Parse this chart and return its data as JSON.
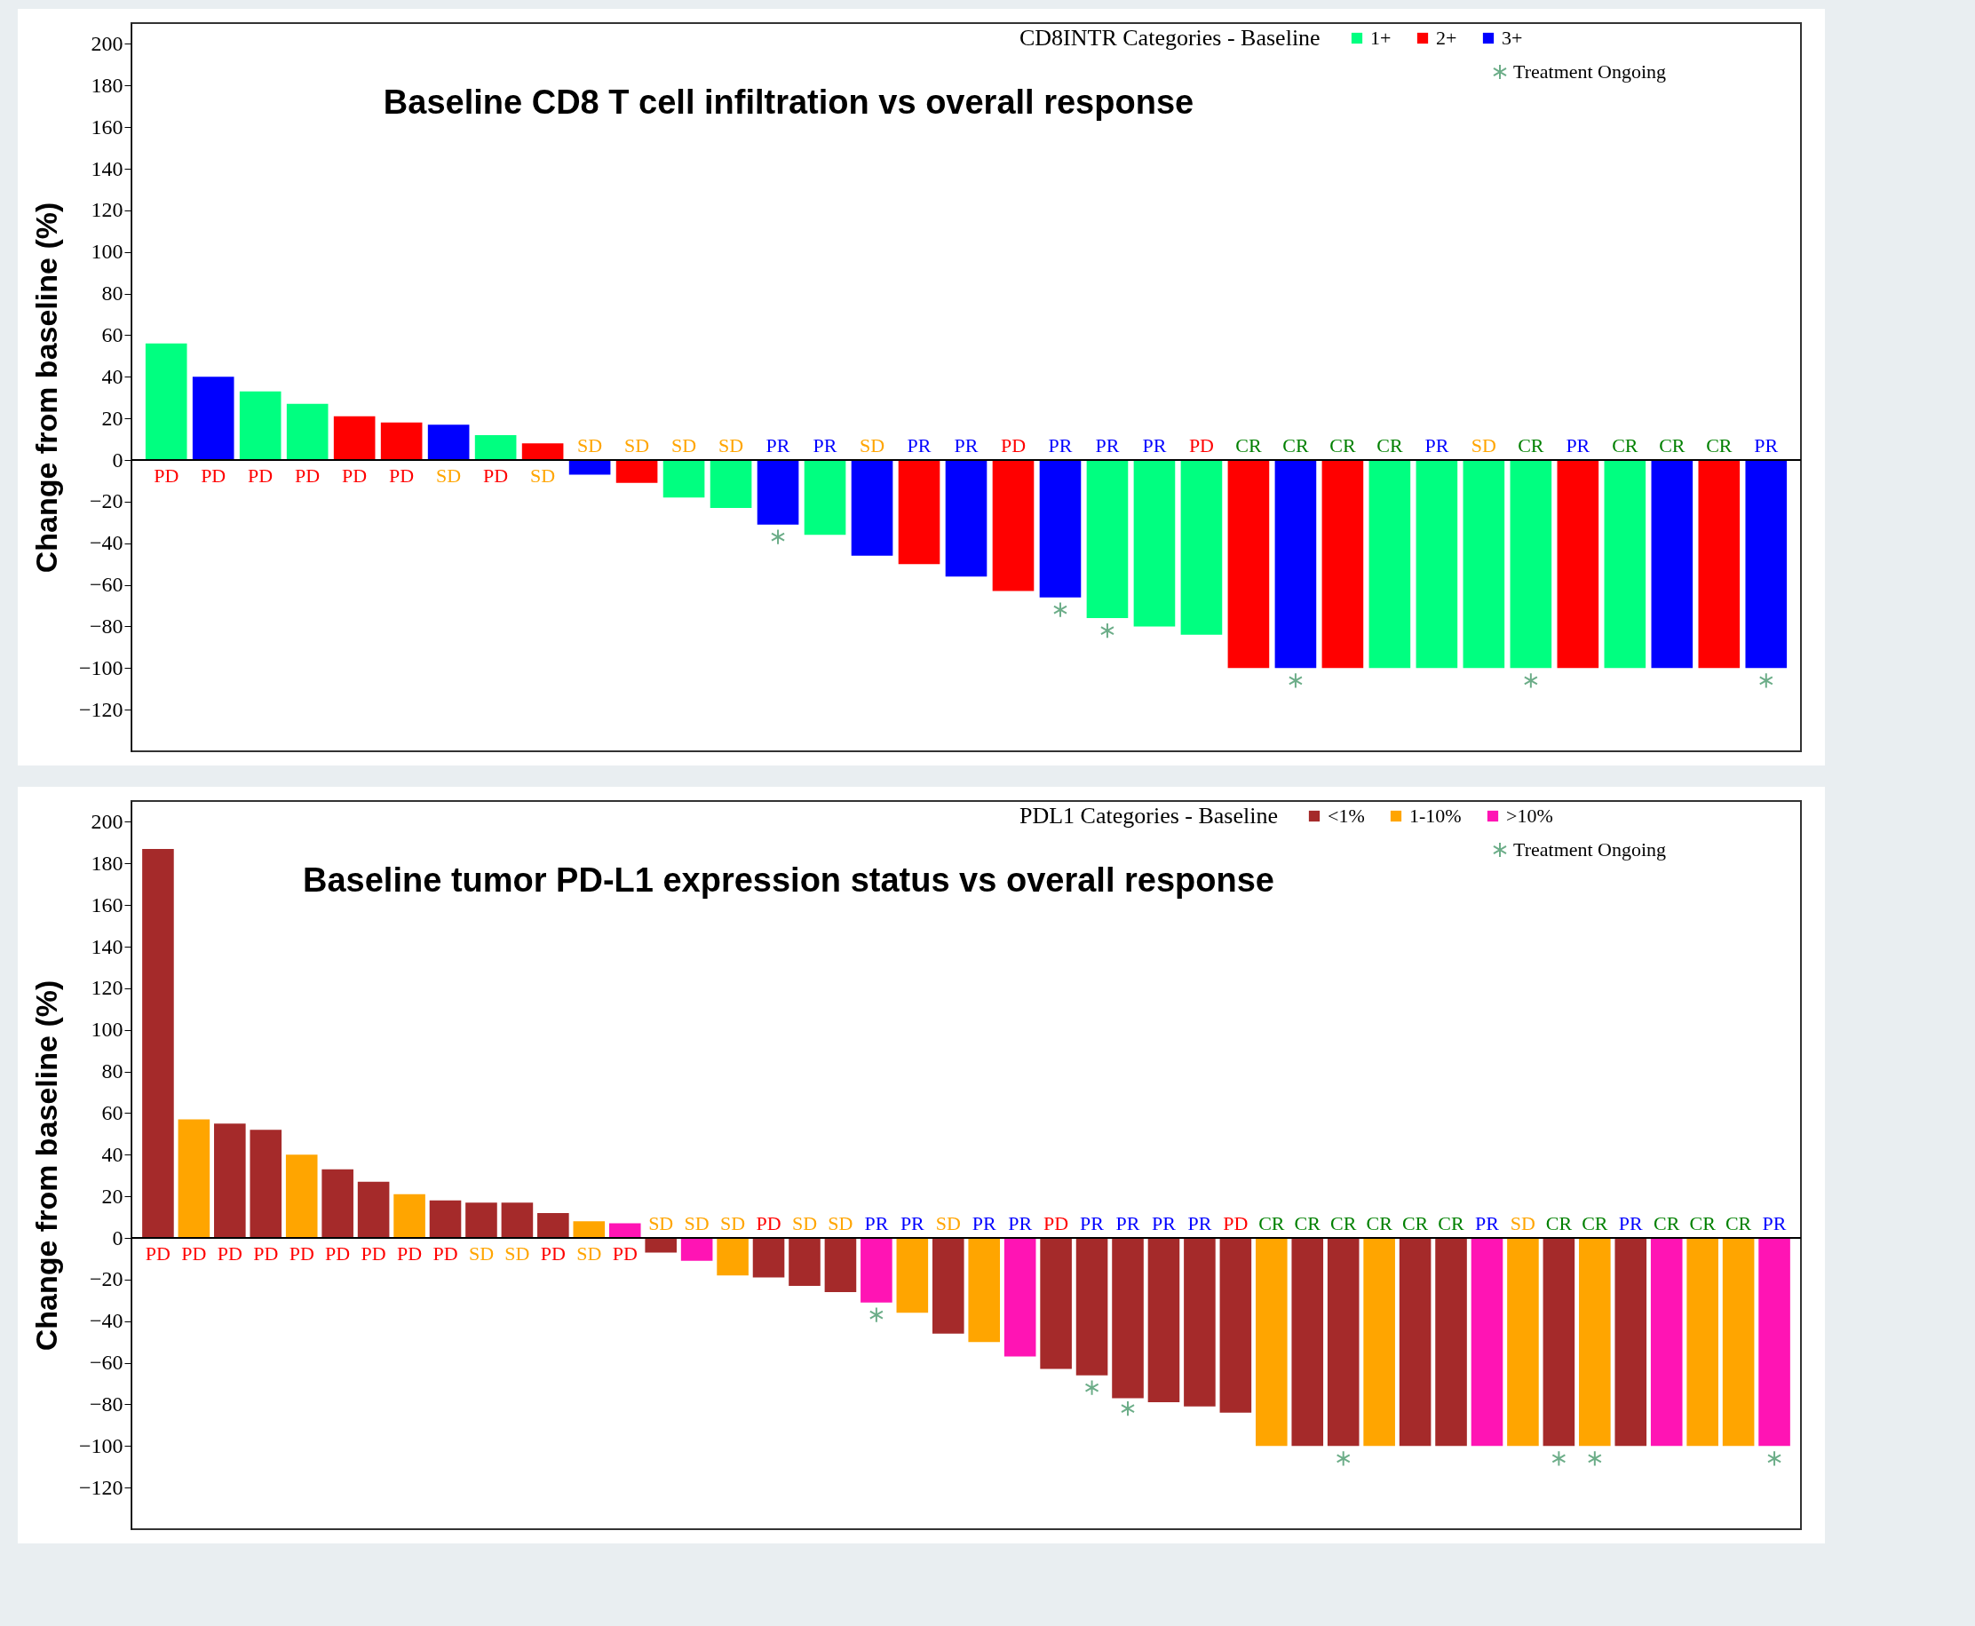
{
  "chart_data": [
    {
      "type": "bar",
      "title": "Baseline CD8 T cell infiltration vs overall response",
      "ylabel": "Change from baseline (%)",
      "legend_title": "CD8INTR Categories - Baseline",
      "legend": "top right",
      "marker": "cross",
      "grid": false,
      "categories": [
        null,
        null,
        null,
        null,
        null,
        null,
        null,
        null,
        null,
        null,
        null,
        null,
        null,
        null,
        null,
        null,
        null,
        null,
        null,
        null,
        null,
        null,
        null,
        null,
        null,
        null,
        null,
        null,
        null,
        null,
        null,
        null,
        null,
        null,
        null
      ],
      "ylim": [
        -140,
        210
      ],
      "yticks": [
        -120,
        -100,
        -80,
        -60,
        -40,
        -20,
        0,
        20,
        40,
        60,
        80,
        100,
        120,
        140,
        160,
        180,
        200
      ],
      "ref_lines": [
        {
          "axis": "y",
          "value": 0,
          "color": "#000000"
        }
      ],
      "series": [
        {
          "name": "1+",
          "color": "#00ff80",
          "values": [
            56,
            null,
            33,
            27,
            null,
            null,
            null,
            12,
            null,
            null,
            null,
            -18,
            -23,
            null,
            -36,
            null,
            null,
            null,
            null,
            null,
            -76,
            -80,
            -84,
            null,
            null,
            null,
            -100,
            -100,
            -100,
            -100,
            null,
            -100,
            null,
            null,
            null
          ],
          "value_labels": [
            "PD",
            null,
            "PD",
            "PD",
            null,
            null,
            null,
            "PD",
            null,
            null,
            null,
            "SD",
            "SD",
            null,
            "PR",
            null,
            null,
            null,
            null,
            null,
            "PR",
            "PR",
            "PD",
            null,
            null,
            null,
            "CR",
            "PR",
            "SD",
            "CR",
            null,
            "CR",
            null,
            null,
            null
          ]
        },
        {
          "name": "2+",
          "color": "#ff0000",
          "values": [
            null,
            null,
            null,
            null,
            21,
            18,
            null,
            null,
            8,
            null,
            -11,
            null,
            null,
            null,
            null,
            null,
            -50,
            null,
            -63,
            null,
            null,
            null,
            null,
            -100,
            null,
            -100,
            null,
            null,
            null,
            null,
            -100,
            null,
            null,
            -100,
            null
          ],
          "value_labels": [
            null,
            null,
            null,
            null,
            "PD",
            "PD",
            null,
            null,
            "SD",
            null,
            "SD",
            null,
            null,
            null,
            null,
            null,
            "PR",
            null,
            "PD",
            null,
            null,
            null,
            null,
            "CR",
            null,
            "CR",
            null,
            null,
            null,
            null,
            "PR",
            null,
            null,
            "CR",
            null
          ]
        },
        {
          "name": "3+",
          "color": "#0000ff",
          "values": [
            null,
            40,
            null,
            null,
            null,
            null,
            17,
            null,
            null,
            -7,
            null,
            null,
            null,
            -31,
            null,
            -46,
            null,
            -56,
            null,
            -66,
            null,
            null,
            null,
            null,
            -100,
            null,
            null,
            null,
            null,
            null,
            null,
            null,
            -100,
            null,
            -100
          ],
          "value_labels": [
            null,
            "PD",
            null,
            null,
            null,
            null,
            "SD",
            null,
            null,
            "SD",
            null,
            null,
            null,
            "PR",
            null,
            "SD",
            null,
            "PR",
            null,
            "PR",
            null,
            null,
            null,
            null,
            "CR",
            null,
            null,
            null,
            null,
            null,
            null,
            null,
            "CR",
            null,
            "PR"
          ]
        },
        {
          "name": "Treatment Ongoing",
          "type": "scatter",
          "color": "#2e8b57",
          "values": [
            null,
            null,
            null,
            null,
            null,
            null,
            null,
            null,
            null,
            null,
            null,
            null,
            null,
            -37,
            null,
            null,
            null,
            null,
            null,
            -72,
            -82,
            null,
            null,
            null,
            -106,
            null,
            null,
            null,
            null,
            -106,
            null,
            null,
            null,
            null,
            -106
          ]
        }
      ]
    },
    {
      "type": "bar",
      "title": "Baseline tumor PD-L1 expression status vs overall response",
      "ylabel": "Change from baseline (%)",
      "legend_title": "PDL1 Categories - Baseline",
      "legend": "top right",
      "marker": "cross",
      "grid": false,
      "categories": [
        null,
        null,
        null,
        null,
        null,
        null,
        null,
        null,
        null,
        null,
        null,
        null,
        null,
        null,
        null,
        null,
        null,
        null,
        null,
        null,
        null,
        null,
        null,
        null,
        null,
        null,
        null,
        null,
        null,
        null,
        null,
        null,
        null,
        null,
        null,
        null,
        null,
        null,
        null,
        null,
        null,
        null,
        null,
        null,
        null,
        null
      ],
      "ylim": [
        -140,
        210
      ],
      "yticks": [
        -120,
        -100,
        -80,
        -60,
        -40,
        -20,
        0,
        20,
        40,
        60,
        80,
        100,
        120,
        140,
        160,
        180,
        200
      ],
      "ref_lines": [
        {
          "axis": "y",
          "value": 0,
          "color": "#000000"
        }
      ],
      "series": [
        {
          "name": "<1%",
          "color": "#a52a2a",
          "values": [
            187,
            null,
            55,
            52,
            null,
            33,
            27,
            null,
            18,
            17,
            17,
            12,
            null,
            null,
            -7,
            null,
            null,
            -19,
            -23,
            -26,
            null,
            null,
            -46,
            null,
            null,
            -63,
            -66,
            -77,
            -79,
            -81,
            -84,
            null,
            -100,
            -100,
            null,
            -100,
            -100,
            null,
            null,
            -100,
            null,
            -100,
            null,
            null,
            null,
            null
          ],
          "value_labels": [
            "PD",
            null,
            "PD",
            "PD",
            null,
            "PD",
            "PD",
            null,
            "PD",
            "SD",
            "SD",
            "PD",
            null,
            null,
            "SD",
            null,
            null,
            "PD",
            "SD",
            "SD",
            null,
            null,
            "SD",
            null,
            null,
            "PD",
            "PR",
            "PR",
            "PR",
            "PR",
            "PD",
            null,
            "CR",
            "CR",
            null,
            "CR",
            "CR",
            null,
            null,
            "CR",
            null,
            "PR",
            null,
            null,
            null,
            null
          ]
        },
        {
          "name": "1-10%",
          "color": "#ffa500",
          "values": [
            null,
            57,
            null,
            null,
            40,
            null,
            null,
            21,
            null,
            null,
            null,
            null,
            8,
            null,
            null,
            null,
            -18,
            null,
            null,
            null,
            null,
            -36,
            null,
            -50,
            null,
            null,
            null,
            null,
            null,
            null,
            null,
            -100,
            null,
            null,
            -100,
            null,
            null,
            null,
            -100,
            null,
            -100,
            null,
            null,
            -100,
            -100,
            null
          ],
          "value_labels": [
            null,
            "PD",
            null,
            null,
            "PD",
            null,
            null,
            "PD",
            null,
            null,
            null,
            null,
            "SD",
            null,
            null,
            null,
            "SD",
            null,
            null,
            null,
            null,
            "PR",
            null,
            "PR",
            null,
            null,
            null,
            null,
            null,
            null,
            null,
            "CR",
            null,
            null,
            "CR",
            null,
            null,
            null,
            "SD",
            null,
            "CR",
            null,
            null,
            "CR",
            "CR",
            null
          ]
        },
        {
          "name": ">10%",
          "color": "#ff14b4",
          "values": [
            null,
            null,
            null,
            null,
            null,
            null,
            null,
            null,
            null,
            null,
            null,
            null,
            null,
            7,
            null,
            -11,
            null,
            null,
            null,
            null,
            -31,
            null,
            null,
            null,
            -57,
            null,
            null,
            null,
            null,
            null,
            null,
            null,
            null,
            null,
            null,
            null,
            null,
            -100,
            null,
            null,
            null,
            null,
            -100,
            null,
            null,
            -100
          ],
          "value_labels": [
            null,
            null,
            null,
            null,
            null,
            null,
            null,
            null,
            null,
            null,
            null,
            null,
            null,
            "PD",
            null,
            "SD",
            null,
            null,
            null,
            null,
            "PR",
            null,
            null,
            null,
            "PR",
            null,
            null,
            null,
            null,
            null,
            null,
            null,
            null,
            null,
            null,
            null,
            null,
            "PR",
            null,
            null,
            null,
            null,
            "CR",
            null,
            null,
            "PR"
          ]
        },
        {
          "name": "Treatment Ongoing",
          "type": "scatter",
          "color": "#2e8b57",
          "values": [
            null,
            null,
            null,
            null,
            null,
            null,
            null,
            null,
            null,
            null,
            null,
            null,
            null,
            null,
            null,
            null,
            null,
            null,
            null,
            null,
            -37,
            null,
            null,
            null,
            null,
            null,
            -72,
            -82,
            null,
            null,
            null,
            null,
            null,
            -106,
            null,
            null,
            null,
            null,
            null,
            -106,
            -106,
            null,
            null,
            null,
            null,
            -106
          ]
        }
      ]
    }
  ]
}
